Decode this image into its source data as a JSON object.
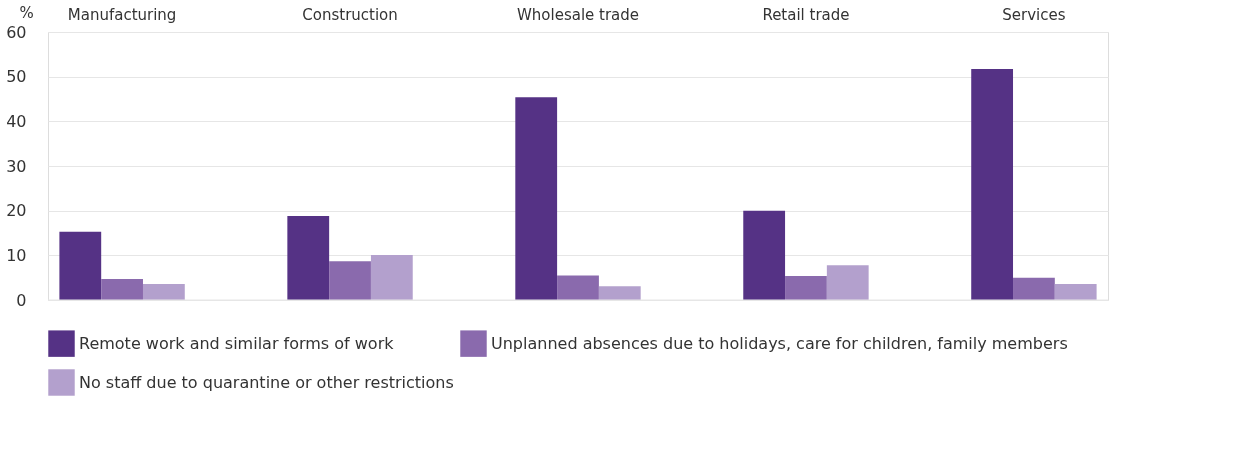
{
  "chart_data": {
    "type": "bar",
    "ylabel": "%",
    "categories": [
      "Manufacturing",
      "Construction",
      "Wholesale trade",
      "Retail trade",
      "Services"
    ],
    "series": [
      {
        "name": "Remote work and similar forms of work",
        "color": "#553285",
        "values": [
          15.3,
          18.8,
          45.4,
          20.0,
          51.7
        ]
      },
      {
        "name": "Unplanned absences due to holidays, care for children, family members",
        "color": "#8a6aad",
        "values": [
          4.7,
          8.7,
          5.5,
          5.4,
          5.0
        ]
      },
      {
        "name": "No staff due to quarantine or other restrictions",
        "color": "#b3a0cd",
        "values": [
          3.6,
          10.1,
          3.1,
          7.8,
          3.6
        ]
      }
    ],
    "ylim": [
      0,
      60
    ],
    "yticks": [
      0,
      10,
      20,
      30,
      40,
      50,
      60
    ],
    "grid": "y",
    "legend": "bottom"
  }
}
